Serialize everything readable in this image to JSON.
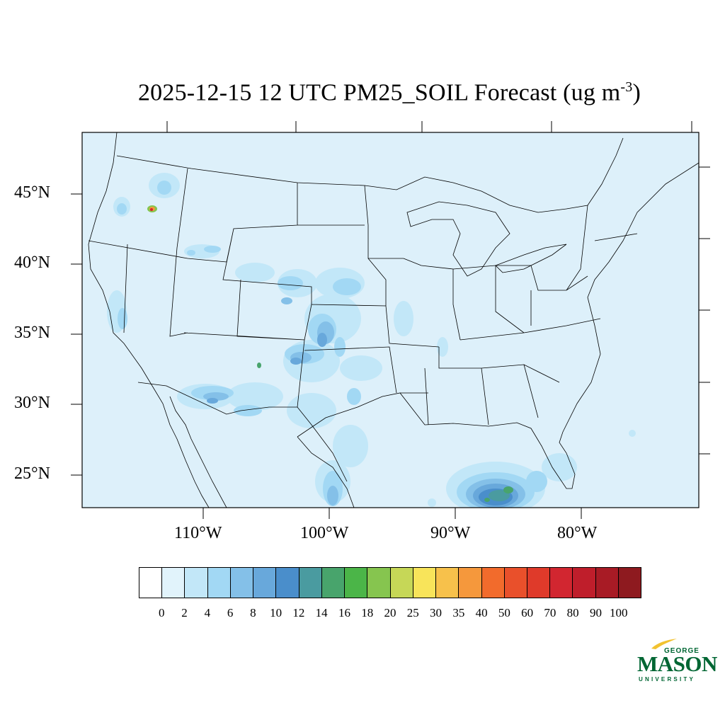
{
  "title": {
    "main": "2025-12-15 12 UTC PM25_SOIL Forecast (ug m",
    "superscript": "-3",
    "close": ")"
  },
  "map": {
    "background_color": "#ddf0fa",
    "border_color": "#000000",
    "lat_labels": [
      "45°N",
      "40°N",
      "35°N",
      "30°N",
      "25°N"
    ],
    "lon_labels": [
      "110°W",
      "100°W",
      "90°W",
      "80°W"
    ]
  },
  "colorbar": {
    "levels": [
      "0",
      "2",
      "4",
      "6",
      "8",
      "10",
      "12",
      "14",
      "16",
      "18",
      "20",
      "25",
      "30",
      "35",
      "40",
      "50",
      "60",
      "70",
      "80",
      "90",
      "100"
    ],
    "colors": [
      "#ffffff",
      "#e1f3fb",
      "#c2e7f8",
      "#a2d8f4",
      "#84c0e8",
      "#68a8db",
      "#4a8ecb",
      "#4a9ba0",
      "#48a46c",
      "#4bb548",
      "#86c54f",
      "#c6d757",
      "#f8e45a",
      "#f7c14b",
      "#f5983c",
      "#f26b2c",
      "#e9502b",
      "#df3a2a",
      "#d22630",
      "#bf1e2b",
      "#a81b25",
      "#8e1a1f"
    ]
  },
  "logo": {
    "line1": "GEORGE",
    "line2": "MASON",
    "line3": "UNIVERSITY",
    "color": "#006633",
    "flame_color": "#f2c230"
  }
}
